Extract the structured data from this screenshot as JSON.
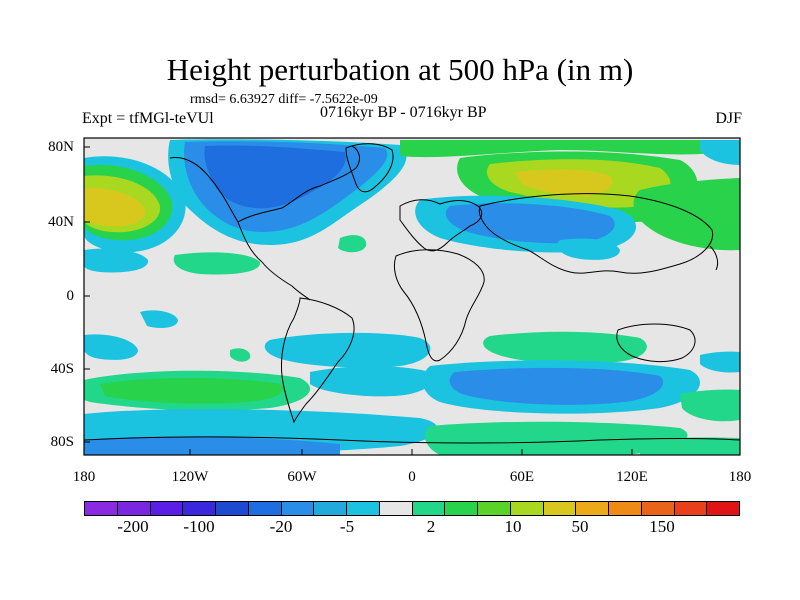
{
  "title": "Height perturbation at 500 hPa (in m)",
  "stats": "rmsd= 6.63927 diff= -7.5622e-09",
  "expt": "Expt = tfMGl-teVUl",
  "period": "0716kyr BP - 0716kyr BP",
  "season": "DJF",
  "lat_labels": [
    "80N",
    "40N",
    "0",
    "40S",
    "80S"
  ],
  "lon_labels": [
    "180",
    "120W",
    "60W",
    "0",
    "60E",
    "120E",
    "180"
  ],
  "colorbar": {
    "colors": [
      "#8a2be2",
      "#7a28e0",
      "#5a1ee6",
      "#3a28dc",
      "#1e4ad0",
      "#1e6ee0",
      "#2a8ee8",
      "#22aadc",
      "#1cc3e0",
      "#e6e6e6",
      "#22d68a",
      "#28d24a",
      "#5ad228",
      "#a8d820",
      "#d8c81e",
      "#ecaa1a",
      "#ee8a16",
      "#e8641a",
      "#e8401a",
      "#e01414"
    ],
    "labels": [
      "-200",
      "-100",
      "-20",
      "-5",
      "2",
      "10",
      "50",
      "150"
    ]
  }
}
